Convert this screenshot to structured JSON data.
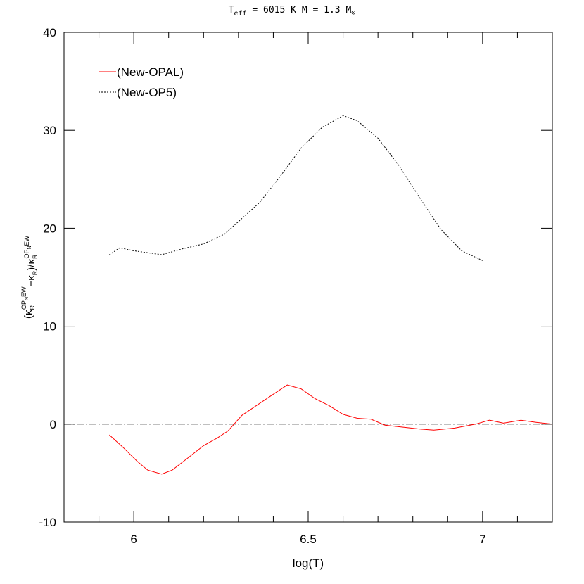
{
  "chart_data": {
    "type": "line",
    "title_parts": [
      "T",
      "eff",
      " = 6015 K  M = 1.3 M",
      "⊙"
    ],
    "ylabel_parts": [
      "(κ",
      "R",
      "OP",
      "N",
      "EW",
      "−κ",
      "R",
      ")/κ",
      "R",
      "OP",
      "N",
      "EW"
    ],
    "xlabel": "log(T)",
    "xlim": [
      5.8,
      7.2
    ],
    "xticks": [
      6,
      6.5,
      7
    ],
    "xminorticks": [
      5.9,
      6.1,
      6.2,
      6.3,
      6.4,
      6.6,
      6.7,
      6.8,
      6.9,
      7.1
    ],
    "ylim": [
      -10,
      40
    ],
    "yticks": [
      -10,
      0,
      10,
      20,
      30,
      40
    ],
    "reference_line": 0,
    "legend": "upper left",
    "series": [
      {
        "name": "(New-OPAL)",
        "color": "#ff0000",
        "style": "solid",
        "x": [
          5.93,
          5.97,
          6.01,
          6.04,
          6.08,
          6.11,
          6.15,
          6.2,
          6.24,
          6.27,
          6.31,
          6.36,
          6.41,
          6.44,
          6.48,
          6.52,
          6.56,
          6.6,
          6.64,
          6.68,
          6.72,
          6.77,
          6.82,
          6.86,
          6.92,
          6.98,
          7.02,
          7.06,
          7.11,
          7.15,
          7.2
        ],
        "values": [
          -1.1,
          -2.4,
          -3.8,
          -4.7,
          -5.1,
          -4.7,
          -3.6,
          -2.2,
          -1.4,
          -0.7,
          0.9,
          2.1,
          3.3,
          4.0,
          3.6,
          2.6,
          1.9,
          1.0,
          0.6,
          0.5,
          -0.1,
          -0.3,
          -0.5,
          -0.6,
          -0.4,
          0.0,
          0.4,
          0.1,
          0.4,
          0.2,
          0.0
        ]
      },
      {
        "name": "(New-OP5)",
        "color": "#000000",
        "style": "dotted",
        "x": [
          5.93,
          5.96,
          6.0,
          6.08,
          6.14,
          6.2,
          6.26,
          6.31,
          6.36,
          6.42,
          6.48,
          6.54,
          6.6,
          6.64,
          6.7,
          6.76,
          6.82,
          6.88,
          6.94,
          7.0
        ],
        "values": [
          17.3,
          18.0,
          17.7,
          17.3,
          17.9,
          18.4,
          19.4,
          21.0,
          22.6,
          25.3,
          28.2,
          30.3,
          31.5,
          31.0,
          29.2,
          26.4,
          23.1,
          19.9,
          17.7,
          16.7
        ]
      }
    ]
  }
}
